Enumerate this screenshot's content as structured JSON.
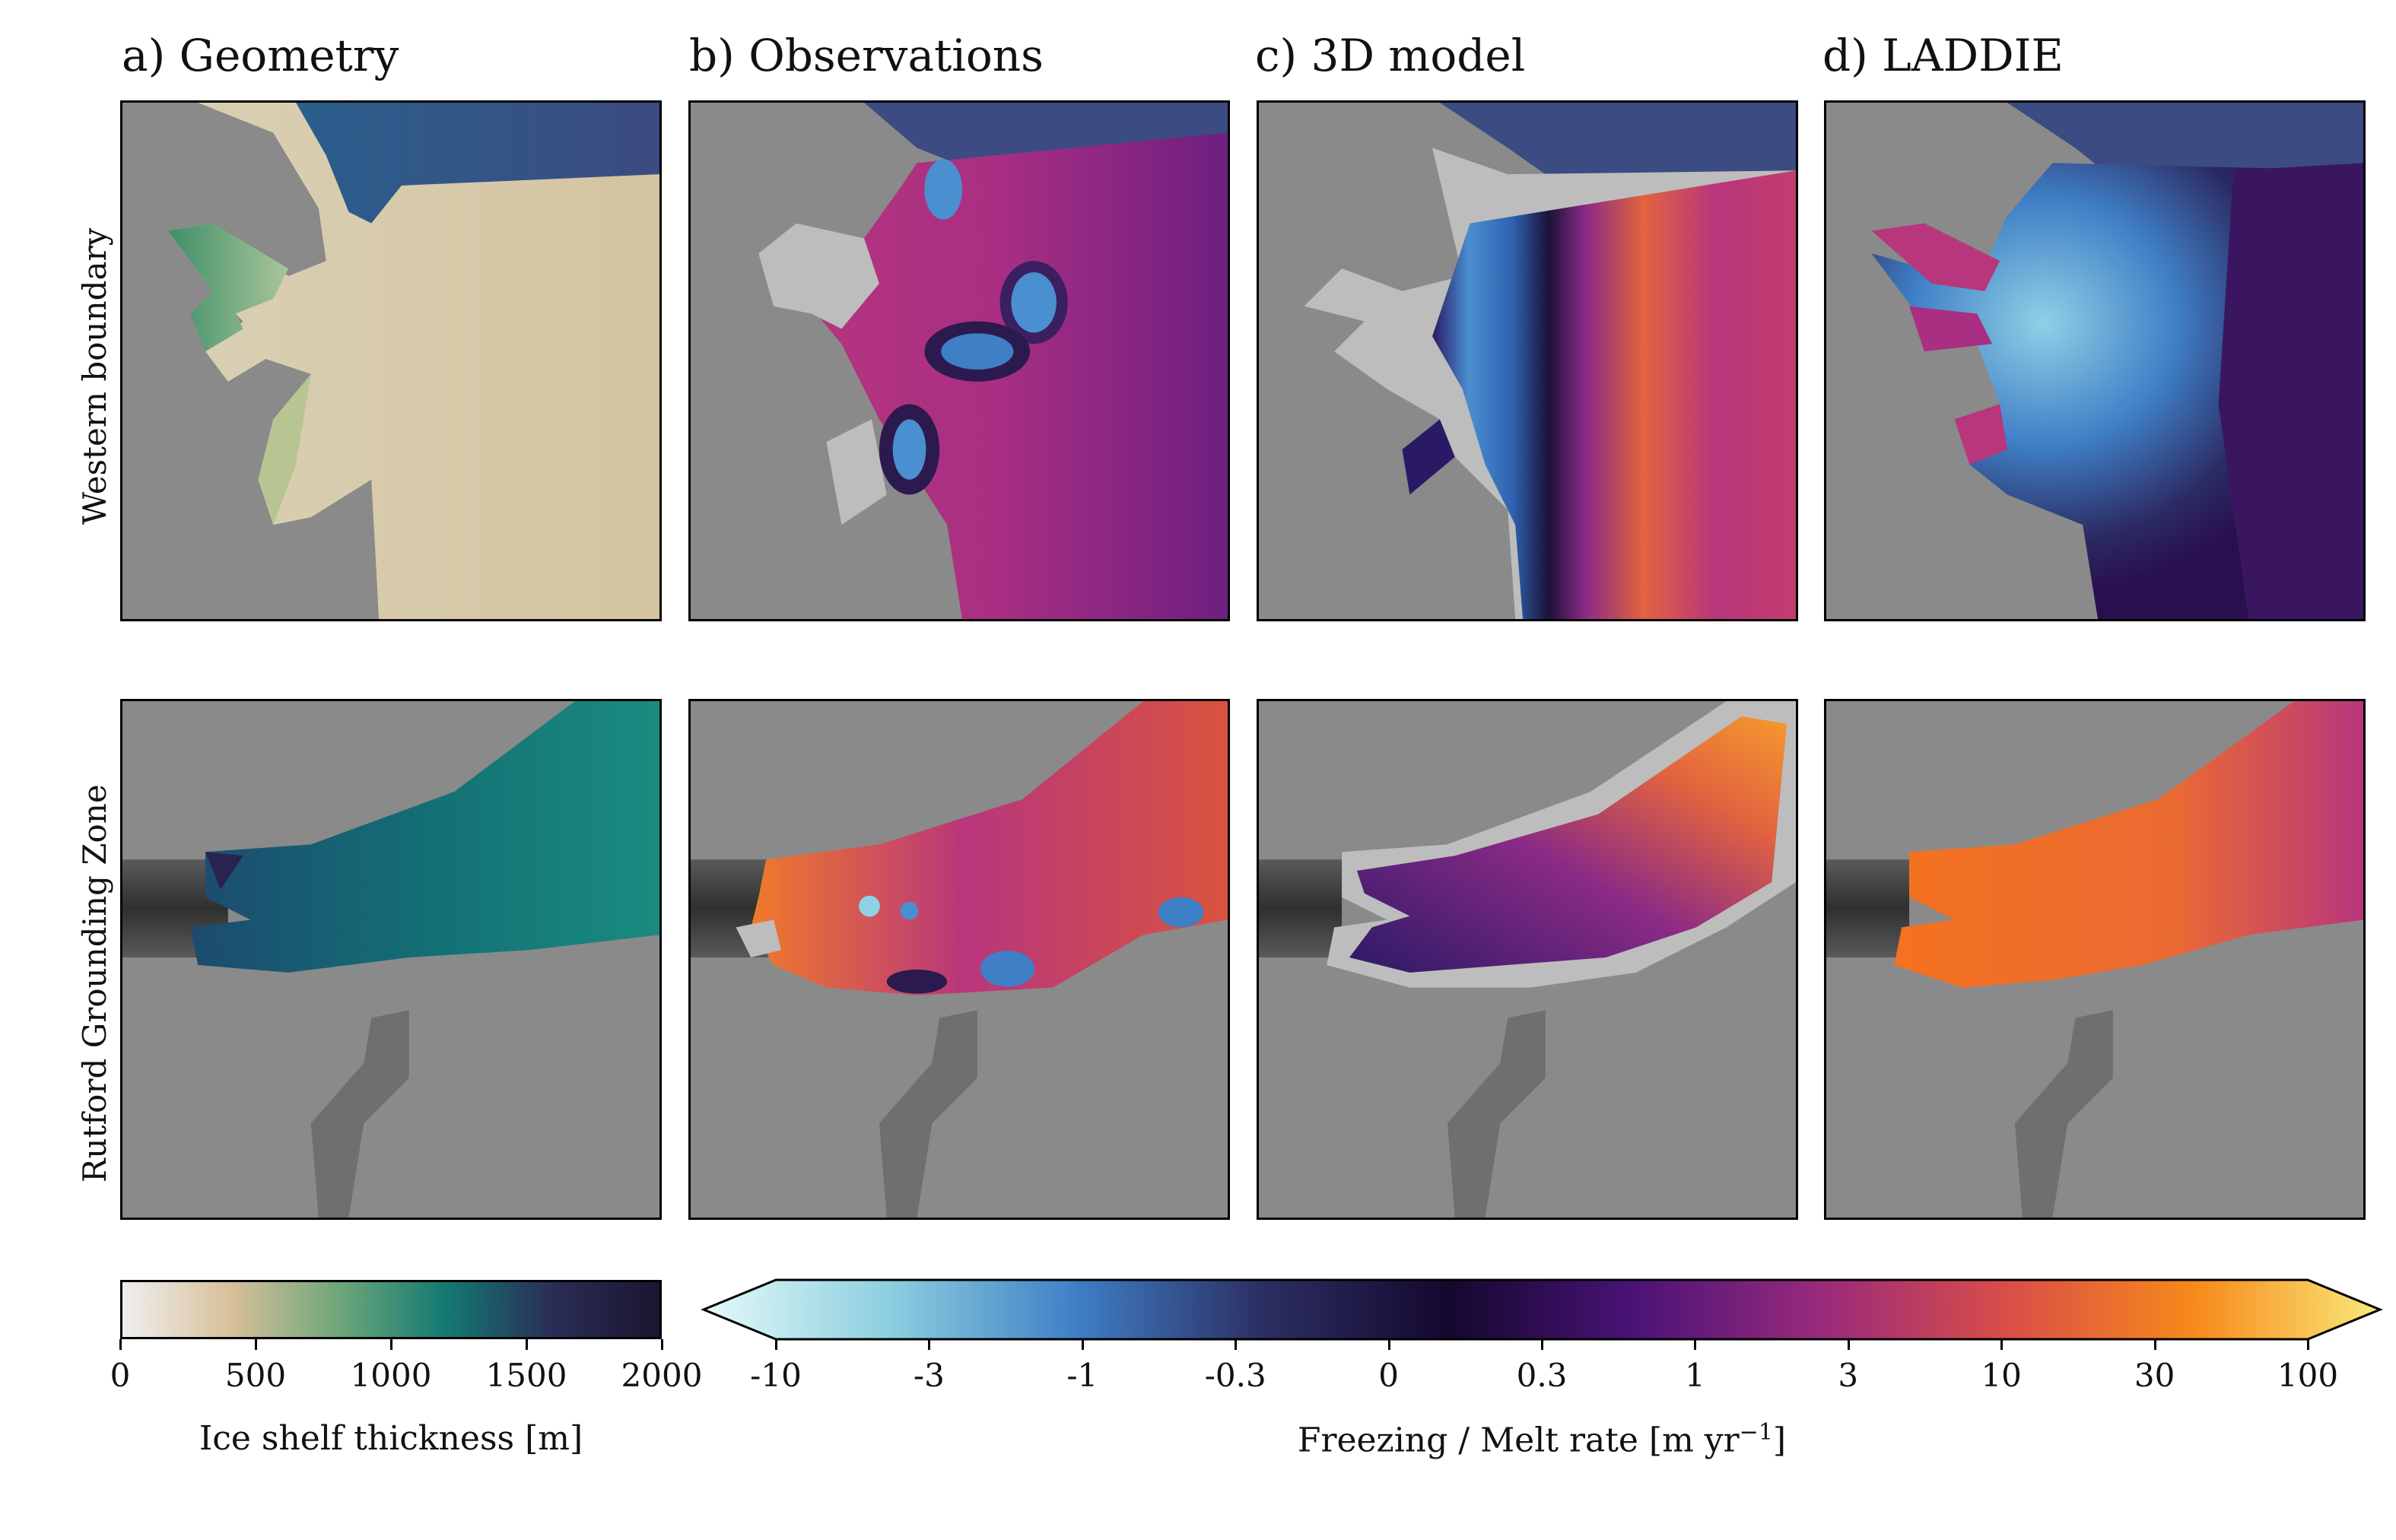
{
  "columns": [
    {
      "title": "a) Geometry"
    },
    {
      "title": "b) Observations"
    },
    {
      "title": "c) 3D model"
    },
    {
      "title": "d) LADDIE"
    }
  ],
  "rows": [
    {
      "label": "Western boundary"
    },
    {
      "label": "Rutford Grounding Zone"
    }
  ],
  "colorbars": {
    "thickness": {
      "label": "Ice shelf thickness [m]",
      "ticks": [
        "0",
        "500",
        "1000",
        "1500",
        "2000"
      ],
      "colors": [
        "#efefef",
        "#d8c09a",
        "#6fa77a",
        "#137a72",
        "#2a2d57",
        "#1b1530"
      ]
    },
    "melt": {
      "label_prefix": "Freezing / Melt rate [m yr",
      "label_exp": "−1",
      "label_suffix": "]",
      "ticks": [
        "-10",
        "-3",
        "-1",
        "-0.3",
        "0",
        "0.3",
        "1",
        "3",
        "10",
        "30",
        "100"
      ],
      "colors": [
        "#e6fafa",
        "#8ccfdf",
        "#3f7fc6",
        "#2c2f63",
        "#14082e",
        "#4b1378",
        "#9a2a7b",
        "#d94e48",
        "#f7891a",
        "#f9e97a"
      ]
    }
  }
}
